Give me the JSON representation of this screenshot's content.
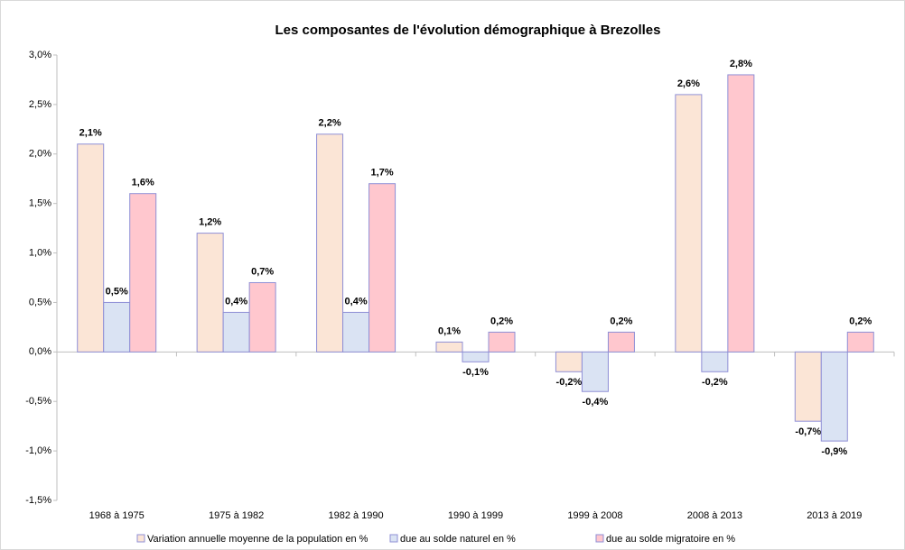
{
  "chart_data": {
    "type": "bar",
    "title": "Les composantes de l'évolution démographique à Brezolles",
    "categories": [
      "1968 à 1975",
      "1975 à 1982",
      "1982 à 1990",
      "1990 à 1999",
      "1999 à 2008",
      "2008 à 2013",
      "2013 à 2019"
    ],
    "series": [
      {
        "name": "Variation annuelle moyenne de la population en %",
        "color": "#fbe5d6",
        "values": [
          2.1,
          1.2,
          2.2,
          0.1,
          -0.2,
          2.6,
          -0.7
        ],
        "value_labels": [
          "2,1%",
          "1,2%",
          "2,2%",
          "0,1%",
          "-0,2%",
          "2,6%",
          "-0,7%"
        ]
      },
      {
        "name": "due au solde naturel en %",
        "color": "#dae3f3",
        "values": [
          0.5,
          0.4,
          0.4,
          -0.1,
          -0.4,
          -0.2,
          -0.9
        ],
        "value_labels": [
          "0,5%",
          "0,4%",
          "0,4%",
          "-0,1%",
          "-0,4%",
          "-0,2%",
          "-0,9%"
        ]
      },
      {
        "name": "due au solde migratoire en %",
        "color": "#ffc7ce",
        "values": [
          1.6,
          0.7,
          1.7,
          0.2,
          0.2,
          2.8,
          0.2
        ],
        "value_labels": [
          "1,6%",
          "0,7%",
          "1,7%",
          "0,2%",
          "0,2%",
          "2,8%",
          "0,2%"
        ]
      }
    ],
    "ylim": [
      -1.5,
      3
    ],
    "yticks": [
      {
        "value": -1.5,
        "label": "-1,5%"
      },
      {
        "value": -1,
        "label": "-1,0%"
      },
      {
        "value": -0.5,
        "label": "-0,5%"
      },
      {
        "value": 0,
        "label": "0,0%"
      },
      {
        "value": 0.5,
        "label": "0,5%"
      },
      {
        "value": 1,
        "label": "1,0%"
      },
      {
        "value": 1.5,
        "label": "1,5%"
      },
      {
        "value": 2,
        "label": "2,0%"
      },
      {
        "value": 2.5,
        "label": "2,5%"
      },
      {
        "value": 3,
        "label": "3,0%"
      }
    ],
    "grid": false,
    "legend": "bottom"
  }
}
